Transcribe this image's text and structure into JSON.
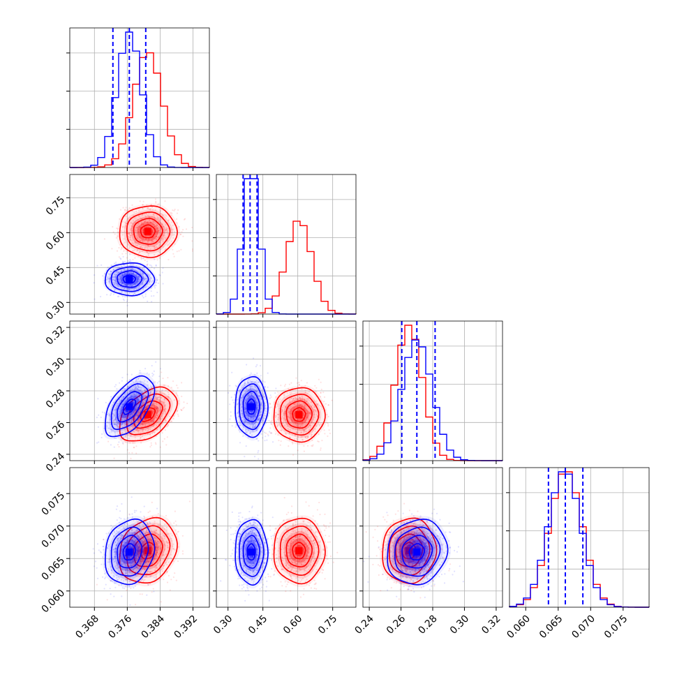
{
  "chart_data": {
    "type": "corner",
    "title": "",
    "grid": true,
    "parameters": [
      {
        "ticks": [
          0.368,
          0.376,
          0.384,
          0.392
        ],
        "tick_labels": [
          "0.368",
          "0.376",
          "0.384",
          "0.392"
        ],
        "range": [
          0.362,
          0.396
        ]
      },
      {
        "ticks": [
          0.3,
          0.45,
          0.6,
          0.75
        ],
        "tick_labels": [
          "0.30",
          "0.45",
          "0.60",
          "0.75"
        ],
        "range": [
          0.25,
          0.85
        ]
      },
      {
        "ticks": [
          0.24,
          0.26,
          0.28,
          0.3,
          0.32
        ],
        "tick_labels": [
          "0.24",
          "0.26",
          "0.28",
          "0.30",
          "0.32"
        ],
        "range": [
          0.236,
          0.324
        ]
      },
      {
        "ticks": [
          0.06,
          0.065,
          0.07,
          0.075
        ],
        "tick_labels": [
          "0.060",
          "0.065",
          "0.070",
          "0.075"
        ],
        "range": [
          0.0575,
          0.079
        ]
      }
    ],
    "series": [
      {
        "color": "#0000ff",
        "means": [
          0.3765,
          0.4,
          0.27,
          0.066
        ],
        "sds": [
          0.003,
          0.035,
          0.0095,
          0.0025
        ],
        "quantiles_16_50_84": [
          [
            0.3725,
            0.3765,
            0.3805
          ],
          [
            0.365,
            0.395,
            0.425
          ],
          [
            0.2605,
            0.27,
            0.2815
          ],
          [
            0.0635,
            0.0661,
            0.0688
          ]
        ]
      },
      {
        "color": "#ff0000",
        "means": [
          0.381,
          0.605,
          0.265,
          0.0662
        ],
        "sds": [
          0.0035,
          0.055,
          0.0085,
          0.0025
        ]
      }
    ],
    "correlations": [
      {
        "pair": [
          0,
          2
        ],
        "blue": 0.55,
        "red": 0.45
      },
      {
        "pair": [
          0,
          3
        ],
        "blue": 0.15,
        "red": 0.2
      },
      {
        "pair": [
          2,
          3
        ],
        "blue": 0.1,
        "red": 0.05
      }
    ]
  }
}
